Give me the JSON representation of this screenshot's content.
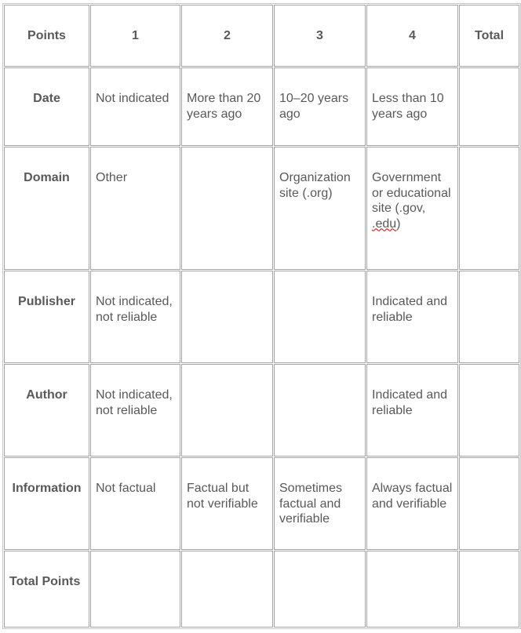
{
  "header": [
    "Points",
    "1",
    "2",
    "3",
    "4",
    "Total"
  ],
  "rows": [
    {
      "label": "Date",
      "cells": [
        "Not indicated",
        "More than 20 years ago",
        "10–20 years ago",
        "Less than 10 years ago",
        ""
      ]
    },
    {
      "label": "Domain",
      "cells": [
        "Other",
        "",
        "Organization site (.org)",
        "Government or educational site (.gov, ",
        ""
      ],
      "cell4_suffix": ".edu",
      "cell4_end": ")"
    },
    {
      "label": "Publisher",
      "cells": [
        "Not indicated, not reliable",
        "",
        "",
        "Indicated and reliable",
        ""
      ]
    },
    {
      "label": "Author",
      "cells": [
        "Not indicated, not reliable",
        "",
        "",
        "Indicated and reliable",
        ""
      ]
    },
    {
      "label": "Information",
      "cells": [
        "Not factual",
        "Factual but not verifiable",
        "Sometimes factual and verifiable",
        "Always factual and verifiable",
        ""
      ]
    },
    {
      "label": "Total Points",
      "cells": [
        "",
        "",
        "",
        "",
        ""
      ]
    }
  ]
}
